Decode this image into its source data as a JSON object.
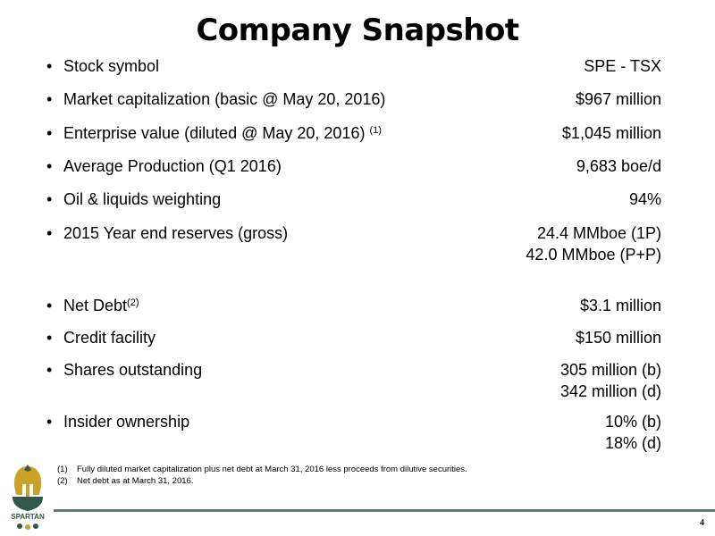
{
  "title": "Company Snapshot",
  "rows": [
    {
      "label": "Stock symbol",
      "values": [
        "SPE - TSX"
      ]
    },
    {
      "label": "Market capitalization (basic @ May 20, 2016)",
      "values": [
        "$967 million"
      ]
    },
    {
      "label": "Enterprise value (diluted @ May 20, 2016) ",
      "sup": "(1)",
      "values": [
        "$1,045 million"
      ]
    },
    {
      "label": "Average Production (Q1 2016)",
      "values": [
        "9,683 boe/d"
      ]
    },
    {
      "label": "Oil & liquids weighting",
      "values": [
        "94%"
      ]
    },
    {
      "label": "2015 Year end reserves (gross)",
      "values": [
        "24.4 MMboe (1P)",
        "42.0 MMboe (P+P)"
      ]
    },
    {
      "label": "Net Debt",
      "sup": "(2)",
      "values": [
        "$3.1 million"
      ]
    },
    {
      "label": "Credit facility",
      "values": [
        "$150 million"
      ]
    },
    {
      "label": "Shares outstanding",
      "values": [
        "305 million (b)",
        "342 million (d)"
      ]
    },
    {
      "label": "Insider ownership",
      "values": [
        "10% (b)",
        "18% (d)"
      ]
    }
  ],
  "footnotes": [
    {
      "num": "(1)",
      "text": "Fully diluted market capitalization plus net debt at March 31, 2016 less proceeds from dilutive securities."
    },
    {
      "num": "(2)",
      "text": "Net debt as at March 31, 2016."
    }
  ],
  "logo_text": "SPARTAN",
  "page_number": "4",
  "colors": {
    "rule": "#5f7c72",
    "logo_gold": "#c9a227",
    "logo_green": "#2f5a4a"
  }
}
